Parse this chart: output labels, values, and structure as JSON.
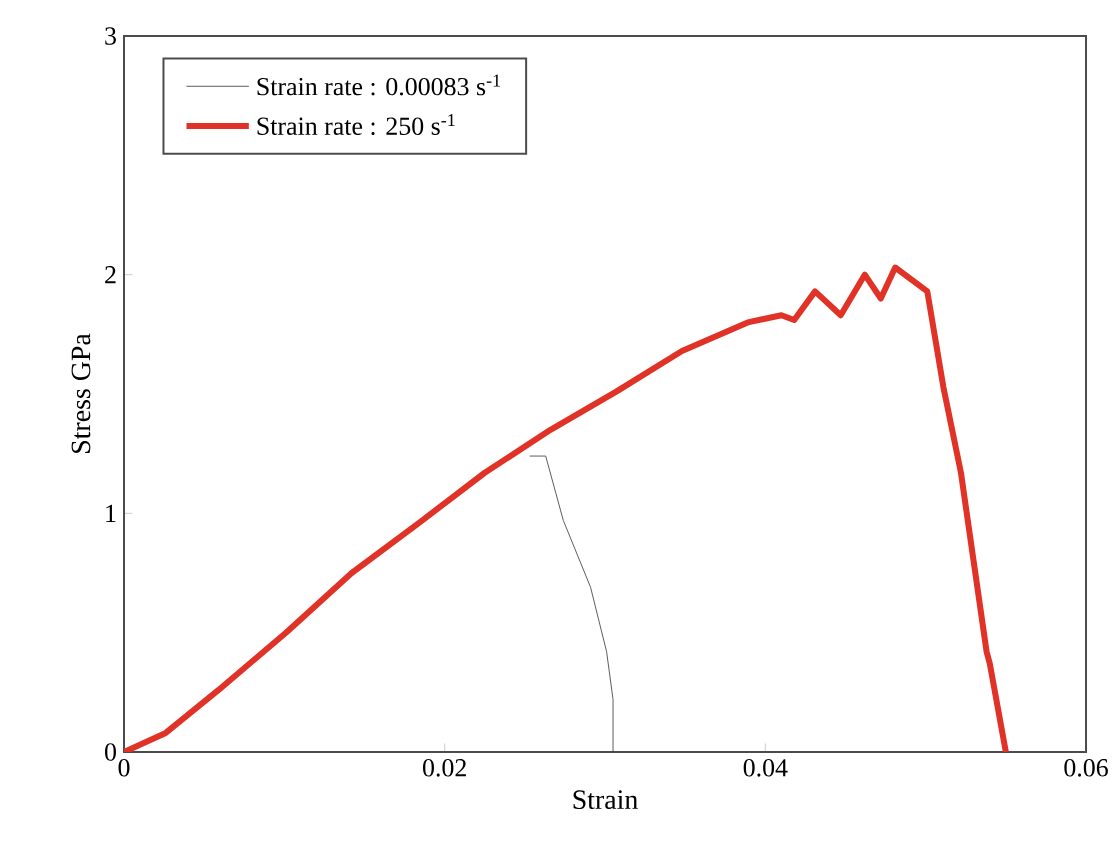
{
  "chart_data": {
    "type": "line",
    "xlabel": "Strain",
    "ylabel": "Stress GPa",
    "xlim": [
      0,
      0.06
    ],
    "ylim": [
      0,
      3
    ],
    "xticks": [
      0,
      0.02,
      0.04,
      0.06
    ],
    "yticks": [
      0,
      1,
      2,
      3
    ],
    "legend": "top left",
    "series": [
      {
        "name": "Strain rate : 0.00083 s$^{-1}$",
        "color": "#333333",
        "x": [
          0.0253,
          0.0263,
          0.0274,
          0.0291,
          0.0301,
          0.0305,
          0.0305
        ],
        "values": [
          1.24,
          1.24,
          0.97,
          0.69,
          0.42,
          0.22,
          0
        ]
      },
      {
        "name": "Strain rate : 250 s$^{-1}$",
        "color": "#e03226",
        "x": [
          0,
          0.0026,
          0.0059,
          0.0101,
          0.0142,
          0.0184,
          0.0225,
          0.0266,
          0.0307,
          0.0348,
          0.0389,
          0.041,
          0.0418,
          0.0431,
          0.0447,
          0.0462,
          0.0472,
          0.0481,
          0.0501,
          0.0511,
          0.0522,
          0.0538,
          0.054,
          0.055
        ],
        "values": [
          0,
          0.08,
          0.26,
          0.5,
          0.75,
          0.96,
          1.17,
          1.35,
          1.51,
          1.68,
          1.8,
          1.83,
          1.81,
          1.93,
          1.83,
          2.0,
          1.9,
          2.03,
          1.93,
          1.53,
          1.17,
          0.42,
          0.37,
          0
        ]
      }
    ]
  }
}
